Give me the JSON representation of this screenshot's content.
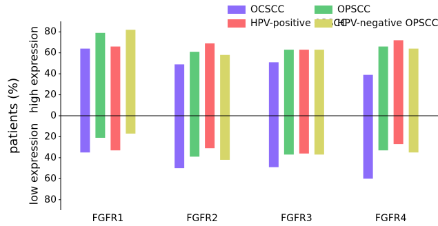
{
  "chart_data": {
    "type": "diverging-bar",
    "ylabel": "patients (%)",
    "upper_label": "high expression",
    "lower_label": "low expression",
    "categories": [
      "FGFR1",
      "FGFR2",
      "FGFR3",
      "FGFR4"
    ],
    "series": [
      {
        "name": "OCSCC",
        "color": "#8c6cfa",
        "high": [
          64,
          49,
          51,
          39
        ],
        "low": [
          -35,
          -50,
          -49,
          -60
        ]
      },
      {
        "name": "OPSCC",
        "color": "#5ec97a",
        "high": [
          79,
          61,
          63,
          66
        ],
        "low": [
          -21,
          -39,
          -37,
          -33
        ]
      },
      {
        "name": "HPV-positive OPSCC",
        "color": "#fb6a6e",
        "high": [
          66,
          69,
          63,
          72
        ],
        "low": [
          -33,
          -31,
          -36,
          -27
        ]
      },
      {
        "name": "HPV-negative OPSCC",
        "color": "#d6d66a",
        "high": [
          82,
          58,
          63,
          64
        ],
        "low": [
          -17,
          -42,
          -37,
          -35
        ]
      }
    ],
    "ylim": [
      -90,
      90
    ],
    "yticks": [
      {
        "value": -80,
        "label": "80"
      },
      {
        "value": -60,
        "label": "60"
      },
      {
        "value": -40,
        "label": "40"
      },
      {
        "value": -20,
        "label": "20"
      },
      0,
      20,
      40,
      60,
      80
    ],
    "legend": "upper right"
  }
}
